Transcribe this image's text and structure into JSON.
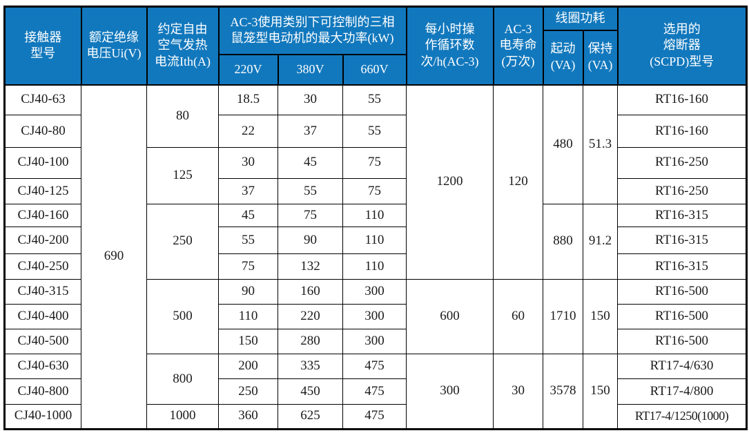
{
  "colors": {
    "header_bg": "#1278bd",
    "header_text": "#ffffff",
    "border_color": "#000000",
    "body_text": "#1a1a1a",
    "body_bg": "#ffffff"
  },
  "header": {
    "model": "接触器\n型号",
    "ui": "额定绝缘\n电压Ui(V)",
    "ith": "约定自由\n空气发热\n电流Ith(A)",
    "ac3_power": "AC-3使用类别下可控制的三相\n鼠笼型电动机的最大功率(kW)",
    "v220": "220V",
    "v380": "380V",
    "v660": "660V",
    "ops": "每小时操\n作循环数\n次/h(AC-3)",
    "life": "AC-3\n电寿命\n(万次)",
    "coil": "线圈功耗",
    "start": "起动\n(VA)",
    "hold": "保持\n(VA)",
    "fuse": "选用的\n熔断器\n(SCPD)型号"
  },
  "chart_data": {
    "type": "table",
    "columns": [
      "接触器型号",
      "额定绝缘电压Ui(V)",
      "约定自由空气发热电流Ith(A)",
      "AC-3使用类别下可控制的三相鼠笼型电动机的最大功率(kW) 220V",
      "AC-3使用类别下可控制的三相鼠笼型电动机的最大功率(kW) 380V",
      "AC-3使用类别下可控制的三相鼠笼型电动机的最大功率(kW) 660V",
      "每小时操作循环数次/h(AC-3)",
      "AC-3电寿命(万次)",
      "线圈功耗 起动(VA)",
      "线圈功耗 保持(VA)",
      "选用的熔断器(SCPD)型号"
    ],
    "rows": [
      [
        "CJ40-63",
        "690",
        "80",
        "18.5",
        "30",
        "55",
        "1200",
        "120",
        "480",
        "51.3",
        "RT16-160"
      ],
      [
        "CJ40-80",
        "690",
        "80",
        "22",
        "37",
        "55",
        "1200",
        "120",
        "480",
        "51.3",
        "RT16-160"
      ],
      [
        "CJ40-100",
        "690",
        "125",
        "30",
        "45",
        "75",
        "1200",
        "120",
        "480",
        "51.3",
        "RT16-250"
      ],
      [
        "CJ40-125",
        "690",
        "125",
        "37",
        "55",
        "75",
        "1200",
        "120",
        "480",
        "51.3",
        "RT16-250"
      ],
      [
        "CJ40-160",
        "690",
        "250",
        "45",
        "75",
        "110",
        "1200",
        "120",
        "880",
        "91.2",
        "RT16-315"
      ],
      [
        "CJ40-200",
        "690",
        "250",
        "55",
        "90",
        "110",
        "1200",
        "120",
        "880",
        "91.2",
        "RT16-315"
      ],
      [
        "CJ40-250",
        "690",
        "250",
        "75",
        "132",
        "110",
        "1200",
        "120",
        "880",
        "91.2",
        "RT16-315"
      ],
      [
        "CJ40-315",
        "690",
        "500",
        "90",
        "160",
        "300",
        "600",
        "60",
        "1710",
        "150",
        "RT16-500"
      ],
      [
        "CJ40-400",
        "690",
        "500",
        "110",
        "220",
        "300",
        "600",
        "60",
        "1710",
        "150",
        "RT16-500"
      ],
      [
        "CJ40-500",
        "690",
        "500",
        "150",
        "280",
        "300",
        "600",
        "60",
        "1710",
        "150",
        "RT16-500"
      ],
      [
        "CJ40-630",
        "690",
        "800",
        "200",
        "335",
        "475",
        "300",
        "30",
        "3578",
        "150",
        "RT17-4/630"
      ],
      [
        "CJ40-800",
        "690",
        "800",
        "250",
        "450",
        "475",
        "300",
        "30",
        "3578",
        "150",
        "RT17-4/800"
      ],
      [
        "CJ40-1000",
        "690",
        "1000",
        "360",
        "625",
        "475",
        "300",
        "30",
        "3578",
        "150",
        "RT17-4/1250(1000)"
      ]
    ]
  }
}
